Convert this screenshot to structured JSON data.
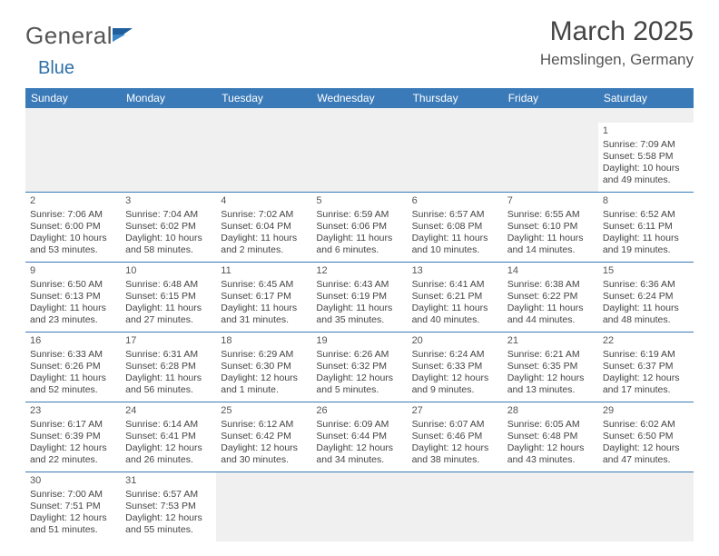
{
  "logo": {
    "text1": "General",
    "text2": "Blue"
  },
  "header": {
    "month_title": "March 2025",
    "location": "Hemslingen, Germany"
  },
  "colors": {
    "header_bg": "#3a7ab8",
    "header_text": "#ffffff",
    "cell_border": "#3a7ab8",
    "empty_bg": "#f0f0f0",
    "body_text": "#444444",
    "title_text": "#444444",
    "logo_gray": "#555555",
    "logo_blue": "#2f6fa7"
  },
  "day_names": [
    "Sunday",
    "Monday",
    "Tuesday",
    "Wednesday",
    "Thursday",
    "Friday",
    "Saturday"
  ],
  "weeks": [
    [
      null,
      null,
      null,
      null,
      null,
      null,
      {
        "n": "1",
        "sr": "Sunrise: 7:09 AM",
        "ss": "Sunset: 5:58 PM",
        "dl": "Daylight: 10 hours and 49 minutes."
      }
    ],
    [
      {
        "n": "2",
        "sr": "Sunrise: 7:06 AM",
        "ss": "Sunset: 6:00 PM",
        "dl": "Daylight: 10 hours and 53 minutes."
      },
      {
        "n": "3",
        "sr": "Sunrise: 7:04 AM",
        "ss": "Sunset: 6:02 PM",
        "dl": "Daylight: 10 hours and 58 minutes."
      },
      {
        "n": "4",
        "sr": "Sunrise: 7:02 AM",
        "ss": "Sunset: 6:04 PM",
        "dl": "Daylight: 11 hours and 2 minutes."
      },
      {
        "n": "5",
        "sr": "Sunrise: 6:59 AM",
        "ss": "Sunset: 6:06 PM",
        "dl": "Daylight: 11 hours and 6 minutes."
      },
      {
        "n": "6",
        "sr": "Sunrise: 6:57 AM",
        "ss": "Sunset: 6:08 PM",
        "dl": "Daylight: 11 hours and 10 minutes."
      },
      {
        "n": "7",
        "sr": "Sunrise: 6:55 AM",
        "ss": "Sunset: 6:10 PM",
        "dl": "Daylight: 11 hours and 14 minutes."
      },
      {
        "n": "8",
        "sr": "Sunrise: 6:52 AM",
        "ss": "Sunset: 6:11 PM",
        "dl": "Daylight: 11 hours and 19 minutes."
      }
    ],
    [
      {
        "n": "9",
        "sr": "Sunrise: 6:50 AM",
        "ss": "Sunset: 6:13 PM",
        "dl": "Daylight: 11 hours and 23 minutes."
      },
      {
        "n": "10",
        "sr": "Sunrise: 6:48 AM",
        "ss": "Sunset: 6:15 PM",
        "dl": "Daylight: 11 hours and 27 minutes."
      },
      {
        "n": "11",
        "sr": "Sunrise: 6:45 AM",
        "ss": "Sunset: 6:17 PM",
        "dl": "Daylight: 11 hours and 31 minutes."
      },
      {
        "n": "12",
        "sr": "Sunrise: 6:43 AM",
        "ss": "Sunset: 6:19 PM",
        "dl": "Daylight: 11 hours and 35 minutes."
      },
      {
        "n": "13",
        "sr": "Sunrise: 6:41 AM",
        "ss": "Sunset: 6:21 PM",
        "dl": "Daylight: 11 hours and 40 minutes."
      },
      {
        "n": "14",
        "sr": "Sunrise: 6:38 AM",
        "ss": "Sunset: 6:22 PM",
        "dl": "Daylight: 11 hours and 44 minutes."
      },
      {
        "n": "15",
        "sr": "Sunrise: 6:36 AM",
        "ss": "Sunset: 6:24 PM",
        "dl": "Daylight: 11 hours and 48 minutes."
      }
    ],
    [
      {
        "n": "16",
        "sr": "Sunrise: 6:33 AM",
        "ss": "Sunset: 6:26 PM",
        "dl": "Daylight: 11 hours and 52 minutes."
      },
      {
        "n": "17",
        "sr": "Sunrise: 6:31 AM",
        "ss": "Sunset: 6:28 PM",
        "dl": "Daylight: 11 hours and 56 minutes."
      },
      {
        "n": "18",
        "sr": "Sunrise: 6:29 AM",
        "ss": "Sunset: 6:30 PM",
        "dl": "Daylight: 12 hours and 1 minute."
      },
      {
        "n": "19",
        "sr": "Sunrise: 6:26 AM",
        "ss": "Sunset: 6:32 PM",
        "dl": "Daylight: 12 hours and 5 minutes."
      },
      {
        "n": "20",
        "sr": "Sunrise: 6:24 AM",
        "ss": "Sunset: 6:33 PM",
        "dl": "Daylight: 12 hours and 9 minutes."
      },
      {
        "n": "21",
        "sr": "Sunrise: 6:21 AM",
        "ss": "Sunset: 6:35 PM",
        "dl": "Daylight: 12 hours and 13 minutes."
      },
      {
        "n": "22",
        "sr": "Sunrise: 6:19 AM",
        "ss": "Sunset: 6:37 PM",
        "dl": "Daylight: 12 hours and 17 minutes."
      }
    ],
    [
      {
        "n": "23",
        "sr": "Sunrise: 6:17 AM",
        "ss": "Sunset: 6:39 PM",
        "dl": "Daylight: 12 hours and 22 minutes."
      },
      {
        "n": "24",
        "sr": "Sunrise: 6:14 AM",
        "ss": "Sunset: 6:41 PM",
        "dl": "Daylight: 12 hours and 26 minutes."
      },
      {
        "n": "25",
        "sr": "Sunrise: 6:12 AM",
        "ss": "Sunset: 6:42 PM",
        "dl": "Daylight: 12 hours and 30 minutes."
      },
      {
        "n": "26",
        "sr": "Sunrise: 6:09 AM",
        "ss": "Sunset: 6:44 PM",
        "dl": "Daylight: 12 hours and 34 minutes."
      },
      {
        "n": "27",
        "sr": "Sunrise: 6:07 AM",
        "ss": "Sunset: 6:46 PM",
        "dl": "Daylight: 12 hours and 38 minutes."
      },
      {
        "n": "28",
        "sr": "Sunrise: 6:05 AM",
        "ss": "Sunset: 6:48 PM",
        "dl": "Daylight: 12 hours and 43 minutes."
      },
      {
        "n": "29",
        "sr": "Sunrise: 6:02 AM",
        "ss": "Sunset: 6:50 PM",
        "dl": "Daylight: 12 hours and 47 minutes."
      }
    ],
    [
      {
        "n": "30",
        "sr": "Sunrise: 7:00 AM",
        "ss": "Sunset: 7:51 PM",
        "dl": "Daylight: 12 hours and 51 minutes."
      },
      {
        "n": "31",
        "sr": "Sunrise: 6:57 AM",
        "ss": "Sunset: 7:53 PM",
        "dl": "Daylight: 12 hours and 55 minutes."
      },
      null,
      null,
      null,
      null,
      null
    ]
  ]
}
